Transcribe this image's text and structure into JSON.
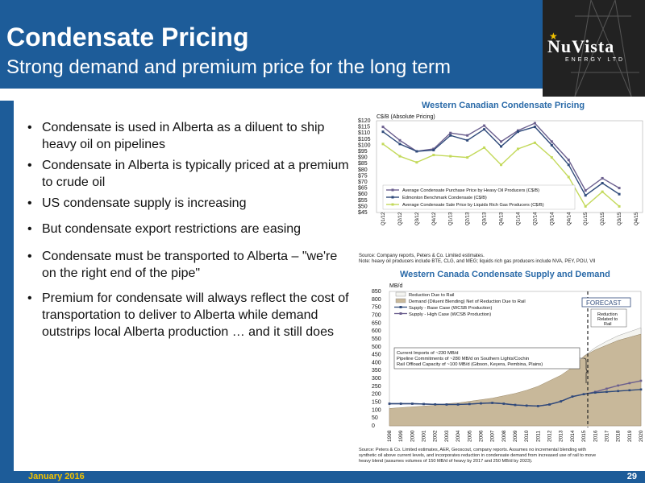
{
  "slide": {
    "title": "Condensate Pricing",
    "subtitle": "Strong demand and premium price for the long term",
    "date": "January 2016",
    "page": "29",
    "logo": {
      "name": "NuVista",
      "sub": "ENERGY LTD",
      "icon": "star-icon"
    },
    "colors": {
      "header": "#1d5c99",
      "footer_date": "#f2c200"
    }
  },
  "bullets": [
    "Condensate is used in Alberta as a diluent to ship heavy oil on pipelines",
    "Condensate in Alberta is typically priced at a premium to crude oil",
    "US condensate supply is increasing",
    "But condensate export restrictions are easing",
    "Condensate must be transported to Alberta – \"we're on the right end of the pipe\"",
    "Premium for condensate will always reflect the cost of transportation to deliver to Alberta while demand outstrips local Alberta production … and it still does"
  ],
  "chart_data": [
    {
      "type": "line",
      "title": "Western Canadian Condensate Pricing",
      "subtitle": "C$/B (Absolute Pricing)",
      "categories": [
        "Q1/12",
        "Q2/12",
        "Q3/12",
        "Q4/12",
        "Q1/13",
        "Q2/13",
        "Q3/13",
        "Q4/13",
        "Q1/14",
        "Q2/14",
        "Q3/14",
        "Q4/14",
        "Q1/15",
        "Q2/15",
        "Q3/15",
        "Q4/15"
      ],
      "y_ticks": [
        "$120",
        "$115",
        "$110",
        "$105",
        "$100",
        "$95",
        "$90",
        "$85",
        "$80",
        "$75",
        "$70",
        "$65",
        "$60",
        "$55",
        "$50",
        "$45"
      ],
      "ylim": [
        45,
        120
      ],
      "series": [
        {
          "name": "Average Condensate Purchase Price by Heavy Oil Producers (C$/B)",
          "color": "#6b5f8e",
          "values": [
            115,
            104,
            95,
            97,
            110,
            108,
            116,
            103,
            112,
            118,
            103,
            88,
            63,
            73,
            65,
            null
          ]
        },
        {
          "name": "Edmonton Benchmark Condensate (C$/B)",
          "color": "#2f4a7a",
          "values": [
            111,
            101,
            95,
            96,
            108,
            104,
            113,
            99,
            111,
            115,
            100,
            84,
            59,
            69,
            60,
            null
          ]
        },
        {
          "name": "Average Condensate Sale Price by Liquids Rich Gas Producers (C$/B)",
          "color": "#c3d95a",
          "values": [
            101,
            91,
            86,
            92,
            91,
            90,
            98,
            84,
            97,
            102,
            90,
            74,
            50,
            62,
            50,
            null
          ]
        }
      ],
      "legend_position": "bottom-left",
      "source": "Source: Company reports, Peters & Co. Limited estimates.",
      "note": "Note: heavy oil producers include BTE, CLG, and MEG; liquids rich gas producers include NVA, PEY, POU, VII"
    },
    {
      "type": "area",
      "title": "Western Canada Condensate Supply and Demand",
      "ylabel": "MB/d",
      "categories": [
        "1998",
        "1999",
        "2000",
        "2001",
        "2002",
        "2003",
        "2004",
        "2005",
        "2006",
        "2007",
        "2008",
        "2009",
        "2010",
        "2011",
        "2012",
        "2013",
        "2014",
        "2015",
        "2016",
        "2017",
        "2018",
        "2019",
        "2020"
      ],
      "y_ticks": [
        "850",
        "800",
        "750",
        "700",
        "650",
        "600",
        "550",
        "500",
        "450",
        "400",
        "350",
        "300",
        "250",
        "200",
        "150",
        "100",
        "50",
        "0"
      ],
      "ylim": [
        0,
        850
      ],
      "series": [
        {
          "name": "Reduction Due to Rail",
          "color": "#f4f4f0",
          "values": [
            null,
            null,
            null,
            null,
            null,
            null,
            null,
            null,
            null,
            null,
            null,
            null,
            null,
            null,
            null,
            null,
            null,
            0,
            15,
            25,
            30,
            35,
            40
          ]
        },
        {
          "name": "Demand (Diluent Blending) Net of Reduction Due to Rail",
          "color": "#c8b89a",
          "values": [
            110,
            115,
            120,
            125,
            130,
            140,
            145,
            155,
            165,
            175,
            190,
            205,
            225,
            250,
            285,
            320,
            370,
            440,
            480,
            510,
            540,
            560,
            580
          ]
        },
        {
          "name": "Supply - Base Case (WCSB Production)",
          "color": "#2f4a7a",
          "values": [
            140,
            140,
            140,
            138,
            136,
            135,
            135,
            138,
            142,
            145,
            140,
            132,
            128,
            125,
            135,
            155,
            185,
            200,
            210,
            215,
            220,
            225,
            230
          ]
        },
        {
          "name": "Supply - High Case (WCSB Production)",
          "color": "#6b5f8e",
          "values": [
            140,
            140,
            140,
            138,
            136,
            135,
            135,
            138,
            142,
            145,
            140,
            132,
            128,
            125,
            135,
            155,
            185,
            200,
            215,
            235,
            255,
            270,
            285
          ]
        }
      ],
      "forecast_label": "FORECAST",
      "reduction_label": "Reduction Related to Rail",
      "annotation": [
        "Current Imports of ~230 MB/d",
        "Pipeline Commitments of ~280 MB/d on Southern Lights/Cochin",
        "Rail Offload Capacity of ~100 MB/d (Gibson, Keyera, Pembina, Plains)"
      ],
      "source": [
        "Source: Peters & Co. Limited estimates, AER, Geoscout, company reports. Assumes no incremental blending with",
        "synthetic oil above current levels, and incorporates reduction in condensate demand from increased use of rail to move",
        "heavy blend (assumes volumes of 150 MB/d of heavy by 2017 and 250 MB/d by 2023)."
      ]
    }
  ]
}
